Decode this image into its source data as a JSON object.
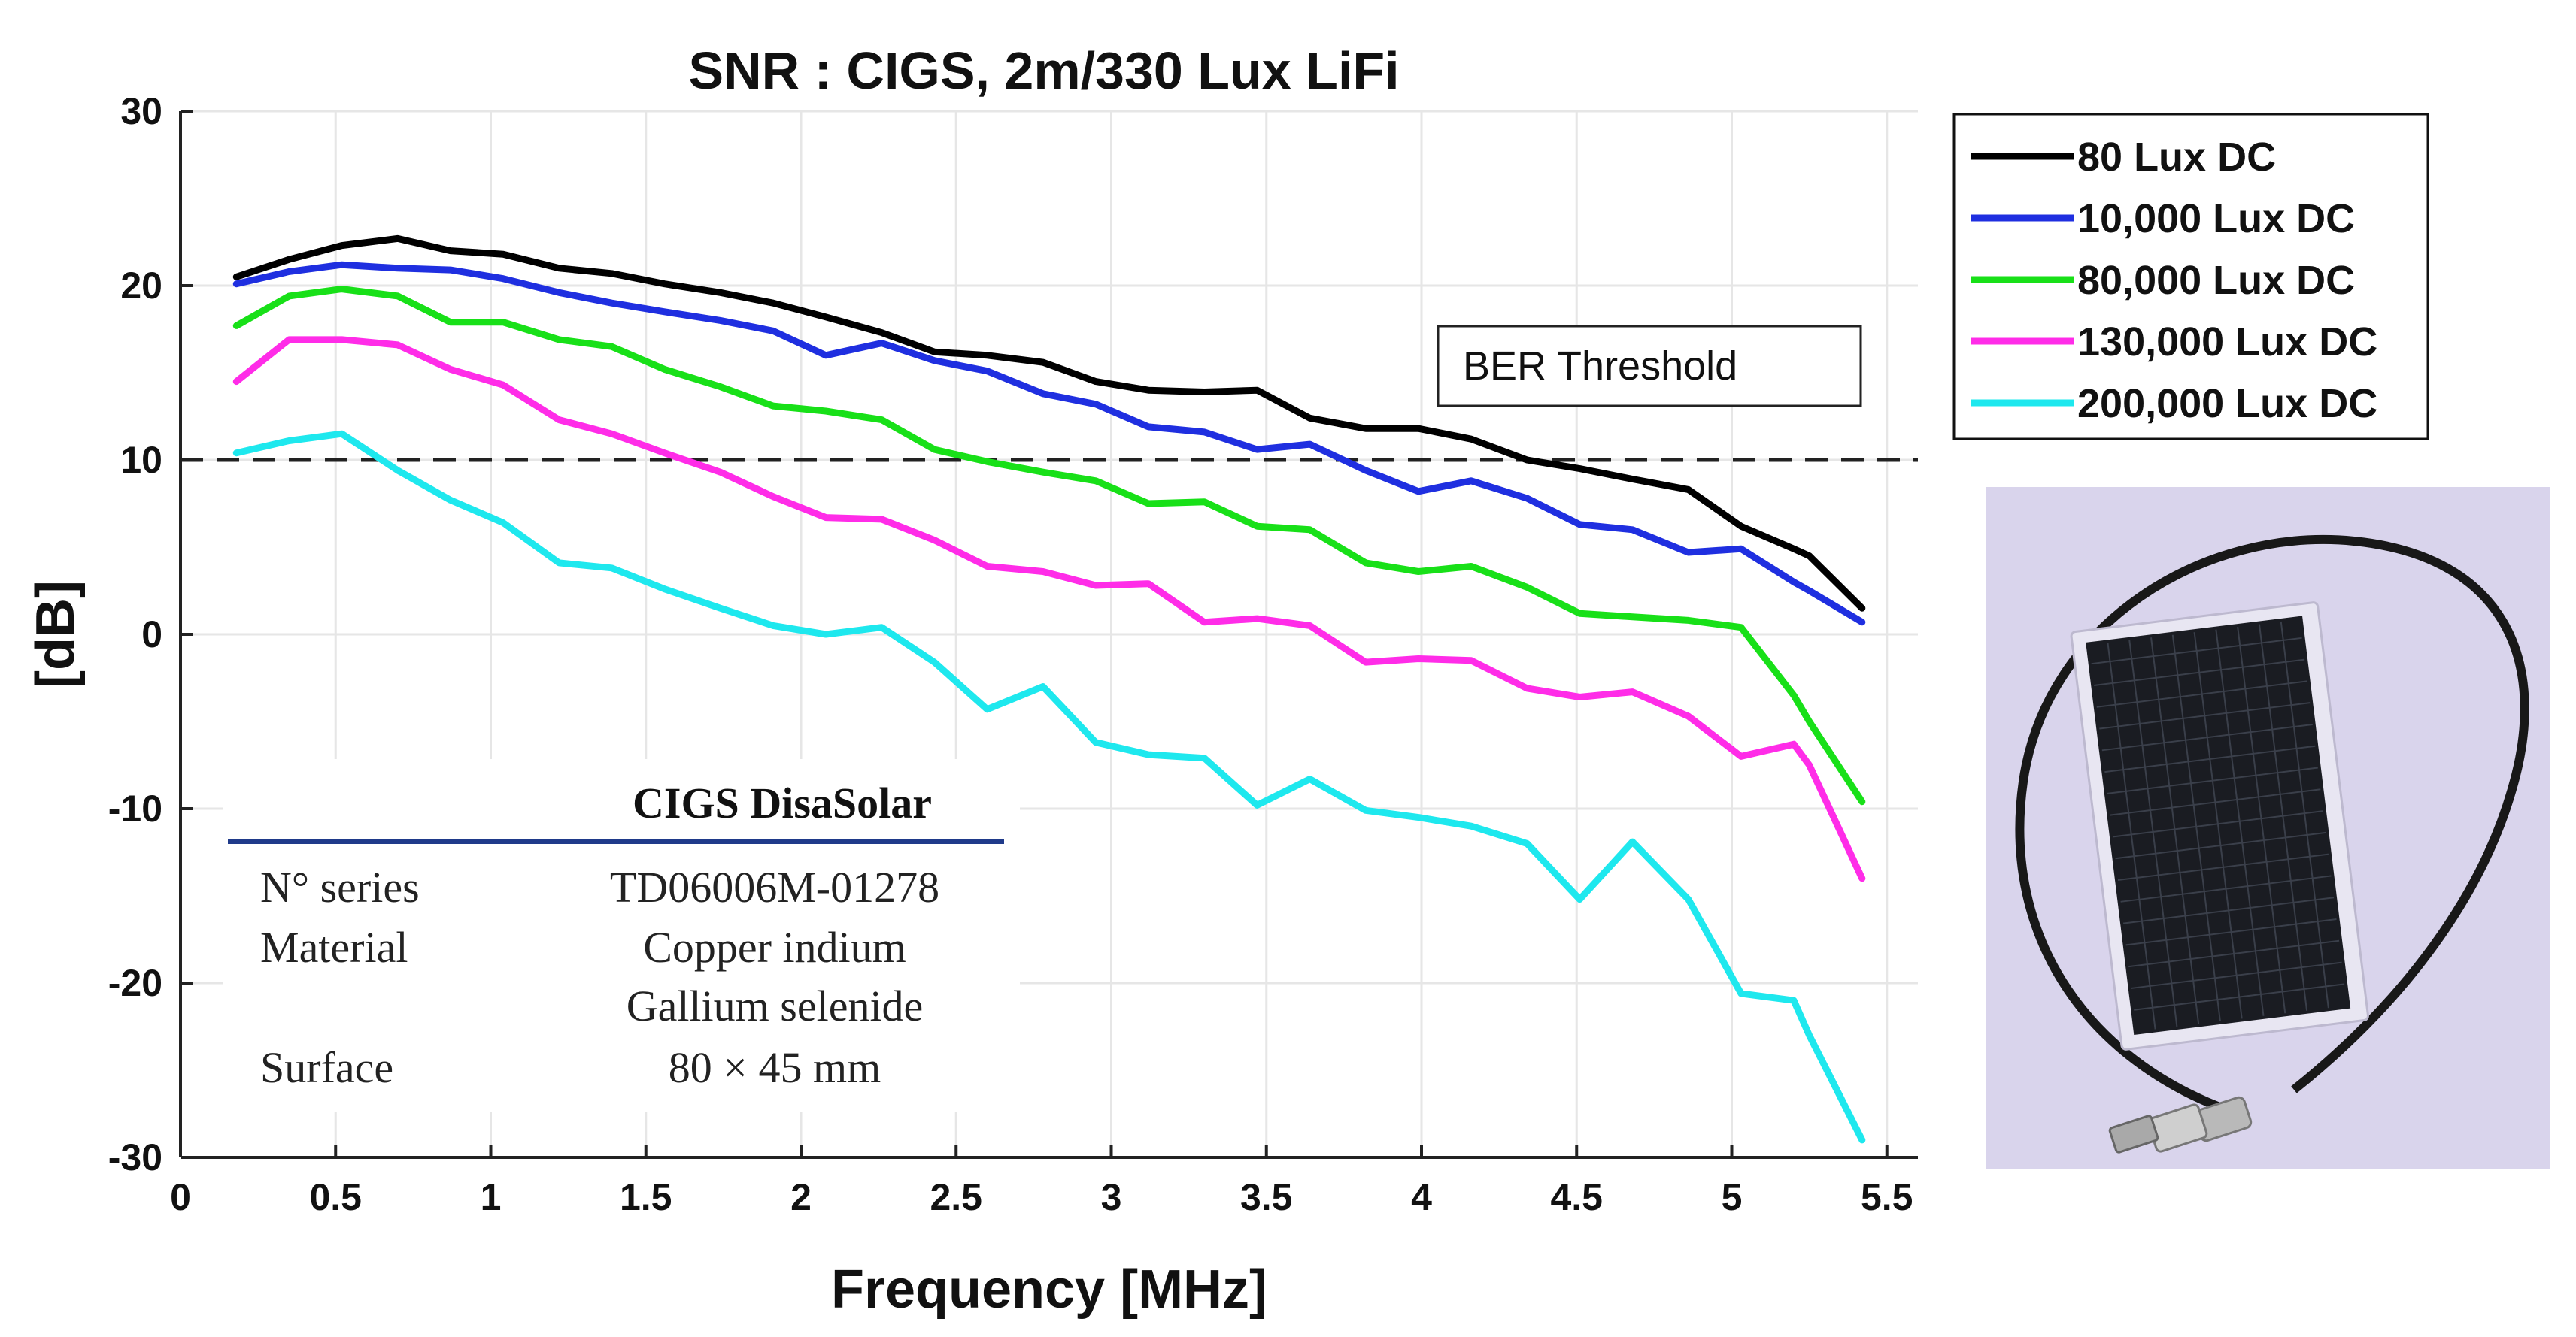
{
  "chart_data": {
    "type": "line",
    "title": "SNR : CIGS, 2m/330 Lux LiFi",
    "xlabel": "Frequency [MHz]",
    "ylabel": "[dB]",
    "xlim": [
      0,
      5.6
    ],
    "ylim": [
      -30,
      30
    ],
    "xticks": [
      0,
      0.5,
      1,
      1.5,
      2,
      2.5,
      3,
      3.5,
      4,
      4.5,
      5,
      5.5
    ],
    "xtick_labels": [
      "0",
      "0.5",
      "1",
      "1.5",
      "2",
      "2.5",
      "3",
      "3.5",
      "4",
      "4.5",
      "5",
      "5.5"
    ],
    "yticks": [
      30,
      20,
      10,
      0,
      -10,
      -20,
      -30
    ],
    "ytick_labels": [
      "30",
      "20",
      "10",
      "0",
      "-10",
      "-20",
      "-30"
    ],
    "grid": true,
    "legend_position": "outside-top-right",
    "x": [
      0.18,
      0.35,
      0.52,
      0.7,
      0.87,
      1.04,
      1.22,
      1.39,
      1.56,
      1.74,
      1.91,
      2.08,
      2.26,
      2.43,
      2.6,
      2.78,
      2.95,
      3.12,
      3.3,
      3.47,
      3.64,
      3.82,
      3.99,
      4.16,
      4.34,
      4.51,
      4.68,
      4.86,
      5.03,
      5.2,
      5.25,
      5.42
    ],
    "series": [
      {
        "name": "80 Lux DC",
        "color": "#000000",
        "values": [
          20.5,
          21.5,
          22.3,
          22.7,
          22.0,
          21.8,
          21.0,
          20.7,
          20.1,
          19.6,
          19.0,
          18.2,
          17.3,
          16.2,
          16.0,
          15.6,
          14.5,
          14.0,
          13.9,
          14.0,
          12.4,
          11.8,
          11.8,
          11.2,
          10.0,
          9.5,
          8.9,
          8.3,
          6.2,
          4.9,
          4.5,
          1.5
        ]
      },
      {
        "name": "10,000 Lux DC",
        "color": "#1f2fe0",
        "values": [
          20.1,
          20.8,
          21.2,
          21.0,
          20.9,
          20.4,
          19.6,
          19.0,
          18.5,
          18.0,
          17.4,
          16.0,
          16.7,
          15.7,
          15.1,
          13.8,
          13.2,
          11.9,
          11.6,
          10.6,
          10.9,
          9.4,
          8.2,
          8.8,
          7.8,
          6.3,
          6.0,
          4.7,
          4.9,
          3.0,
          2.5,
          0.7
        ]
      },
      {
        "name": "80,000 Lux DC",
        "color": "#18e018",
        "values": [
          17.7,
          19.4,
          19.8,
          19.4,
          17.9,
          17.9,
          16.9,
          16.5,
          15.2,
          14.2,
          13.1,
          12.8,
          12.3,
          10.6,
          9.9,
          9.3,
          8.8,
          7.5,
          7.6,
          6.2,
          6.0,
          4.1,
          3.6,
          3.9,
          2.7,
          1.2,
          1.0,
          0.8,
          0.4,
          -3.5,
          -5.0,
          -9.6
        ]
      },
      {
        "name": "130,000 Lux DC",
        "color": "#ff2ce8",
        "values": [
          14.5,
          16.9,
          16.9,
          16.6,
          15.2,
          14.3,
          12.3,
          11.5,
          10.4,
          9.3,
          7.9,
          6.7,
          6.6,
          5.4,
          3.9,
          3.6,
          2.8,
          2.9,
          0.7,
          0.9,
          0.5,
          -1.6,
          -1.4,
          -1.5,
          -3.1,
          -3.6,
          -3.3,
          -4.7,
          -7.0,
          -6.3,
          -7.5,
          -14.0
        ]
      },
      {
        "name": "200,000 Lux DC",
        "color": "#1ee8ee",
        "values": [
          10.4,
          11.1,
          11.5,
          9.4,
          7.7,
          6.4,
          4.1,
          3.8,
          2.6,
          1.5,
          0.5,
          0.0,
          0.4,
          -1.6,
          -4.3,
          -3.0,
          -6.2,
          -6.9,
          -7.1,
          -9.8,
          -8.3,
          -10.1,
          -10.5,
          -11.0,
          -12.0,
          -15.2,
          -11.9,
          -15.2,
          -20.6,
          -21.0,
          -23.0,
          -29.0
        ]
      }
    ],
    "threshold": {
      "value": 10,
      "label": "BER Threshold"
    }
  },
  "spec_table": {
    "title": "CIGS DisaSolar",
    "rows": [
      {
        "label": "N° series",
        "value": "TD06006M-01278"
      },
      {
        "label": "Material",
        "value": "Copper indium"
      },
      {
        "label": "",
        "value": "Gallium selenide"
      },
      {
        "label": "Surface",
        "value": "80 × 45 mm"
      }
    ]
  },
  "photo": {
    "subject": "CIGS solar panel with BNC cable"
  }
}
